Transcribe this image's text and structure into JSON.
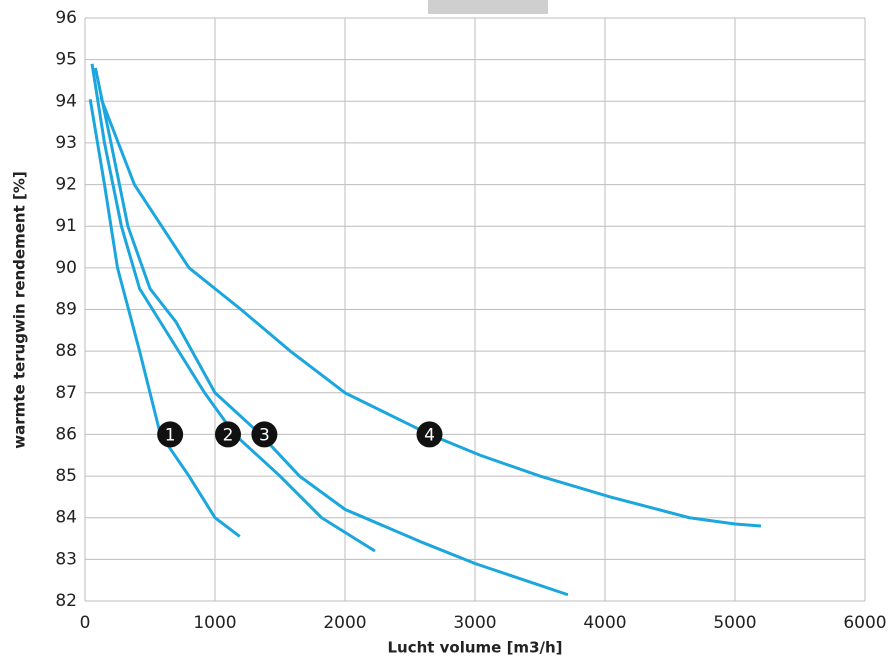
{
  "chart_data": {
    "type": "line",
    "x_label": "Lucht volume [m3/h]",
    "y_label": "warmte terugwin rendement [%]",
    "xlim": [
      0,
      6000
    ],
    "xticks": [
      0,
      1000,
      2000,
      3000,
      4000,
      5000,
      6000
    ],
    "ylim": [
      82,
      96
    ],
    "yticks": [
      82,
      83,
      84,
      85,
      86,
      87,
      88,
      89,
      90,
      91,
      92,
      93,
      94,
      95,
      96
    ],
    "grid": true,
    "series": [
      {
        "color": "#1ba6dd",
        "x": [
          40,
          150,
          250,
          420,
          580,
          800,
          1000,
          1190
        ],
        "values": [
          94.05,
          92,
          90,
          88,
          86,
          85,
          84,
          83.55
        ]
      },
      {
        "color": "#1ba6dd",
        "x": [
          54,
          150,
          280,
          420,
          580,
          920,
          1150,
          1500,
          1820,
          2230
        ],
        "values": [
          94.9,
          93,
          91,
          89.5,
          88.7,
          87,
          86,
          85,
          84,
          83.2
        ]
      },
      {
        "color": "#1ba6dd",
        "x": [
          80,
          200,
          330,
          500,
          700,
          1000,
          1350,
          1650,
          2000,
          2600,
          3000,
          3715
        ],
        "values": [
          94.8,
          93,
          91,
          89.5,
          88.7,
          87,
          86,
          85,
          84.2,
          83.4,
          82.9,
          82.15
        ]
      },
      {
        "color": "#1ba6dd",
        "x": [
          120,
          380,
          800,
          1200,
          1580,
          2000,
          2650,
          3040,
          3500,
          4040,
          4650,
          5000,
          5200
        ],
        "values": [
          94.1,
          92,
          90,
          89,
          88,
          87,
          86,
          85.5,
          85,
          84.5,
          84,
          83.85,
          83.8
        ]
      }
    ],
    "annotations": [
      {
        "text": "1",
        "x": 655,
        "y": 86
      },
      {
        "text": "2",
        "x": 1100,
        "y": 86
      },
      {
        "text": "3",
        "x": 1380,
        "y": 86
      },
      {
        "text": "4",
        "x": 2650,
        "y": 86
      }
    ]
  }
}
